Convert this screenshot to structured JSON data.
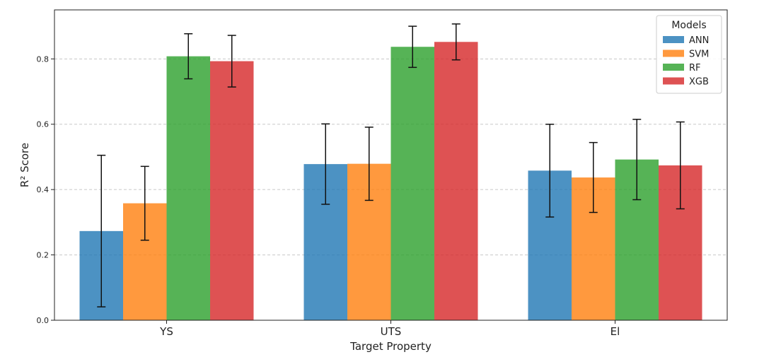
{
  "chart_data": {
    "type": "bar",
    "categories": [
      "YS",
      "UTS",
      "El"
    ],
    "xlabel": "Target Property",
    "ylabel": "R² Score",
    "ylim": [
      0,
      0.95
    ],
    "yticks": [
      0.0,
      0.2,
      0.4,
      0.6,
      0.8
    ],
    "ytick_labels": [
      "0.0",
      "0.2",
      "0.4",
      "0.6",
      "0.8"
    ],
    "grid": {
      "y": true,
      "x": false,
      "style": "dashed"
    },
    "legend": {
      "title": "Models",
      "placement": "top-right"
    },
    "series": [
      {
        "name": "ANN",
        "color": "#1f77b4",
        "values": [
          0.273,
          0.478,
          0.458
        ],
        "errors": [
          0.232,
          0.123,
          0.142
        ]
      },
      {
        "name": "SVM",
        "color": "#ff7f0e",
        "values": [
          0.358,
          0.479,
          0.437
        ],
        "errors": [
          0.113,
          0.112,
          0.107
        ]
      },
      {
        "name": "RF",
        "color": "#2ca02c",
        "values": [
          0.808,
          0.837,
          0.492
        ],
        "errors": [
          0.069,
          0.063,
          0.123
        ]
      },
      {
        "name": "XGB",
        "color": "#d62728",
        "values": [
          0.793,
          0.852,
          0.474
        ],
        "errors": [
          0.079,
          0.055,
          0.133
        ]
      }
    ]
  }
}
